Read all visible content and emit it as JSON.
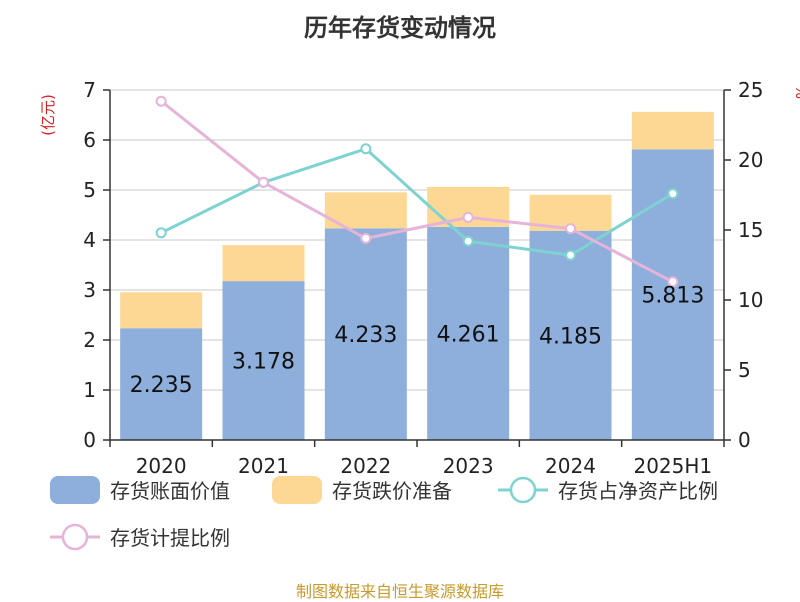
{
  "chart_data": {
    "type": "bar",
    "title": "历年存货变动情况",
    "ylabel": "(亿元)",
    "y2label": "%",
    "categories": [
      "2020",
      "2021",
      "2022",
      "2023",
      "2024",
      "2025H1"
    ],
    "ylim": [
      0,
      7
    ],
    "y2lim": [
      0,
      25
    ],
    "yticks": [
      0,
      1,
      2,
      3,
      4,
      5,
      6,
      7
    ],
    "y2ticks": [
      0,
      5,
      10,
      15,
      20,
      25
    ],
    "grid": true,
    "legend_position": "bottom",
    "series": [
      {
        "name": "存货账面价值",
        "kind": "bar",
        "stack": "s",
        "axis": "left",
        "color": "#8eaedb",
        "values": [
          2.235,
          3.178,
          4.233,
          4.261,
          4.185,
          5.813
        ],
        "labels": [
          "2.235",
          "3.178",
          "4.233",
          "4.261",
          "4.185",
          "5.813"
        ]
      },
      {
        "name": "存货跌价准备",
        "kind": "bar",
        "stack": "s",
        "axis": "left",
        "color": "#fdd895",
        "values": [
          0.72,
          0.72,
          0.72,
          0.8,
          0.72,
          0.75
        ]
      },
      {
        "name": "存货占净资产比例",
        "kind": "line",
        "axis": "right",
        "color": "#7dd3d1",
        "values": [
          14.8,
          18.4,
          20.8,
          14.2,
          13.2,
          17.6
        ]
      },
      {
        "name": "存货计提比例",
        "kind": "line",
        "axis": "right",
        "color": "#e6b3d9",
        "values": [
          24.2,
          18.4,
          14.4,
          15.9,
          15.1,
          11.3
        ]
      }
    ]
  },
  "footer": "制图数据来自恒生聚源数据库"
}
